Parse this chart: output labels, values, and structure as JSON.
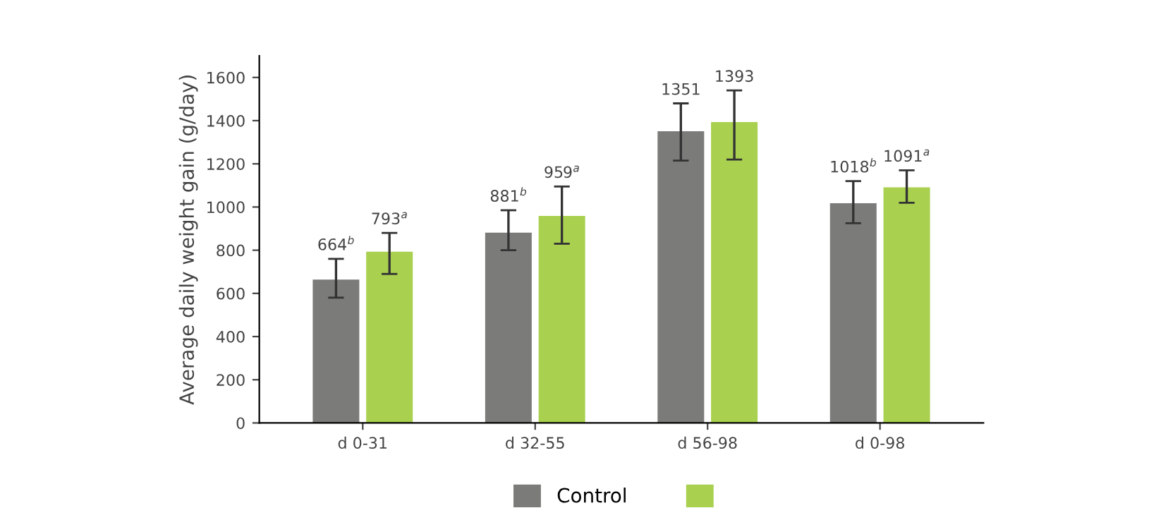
{
  "chart_data": {
    "type": "bar",
    "ylabel": "Average daily weight gain (g/day)",
    "categories": [
      "d 0-31",
      "d 32-55",
      "d 56-98",
      "d 0-98"
    ],
    "series": [
      {
        "name": "Control",
        "color": "#7b7b79",
        "values": [
          664,
          881,
          1351,
          1018
        ],
        "errors": [
          [
            580,
            760
          ],
          [
            800,
            985
          ],
          [
            1215,
            1480
          ],
          [
            925,
            1120
          ]
        ],
        "value_labels": [
          "664$^{b}$",
          "881$^{b}$",
          "1351",
          "1018$^{b}$"
        ]
      },
      {
        "color": "#a9d04f",
        "values": [
          793,
          959,
          1393,
          1091
        ],
        "errors": [
          [
            690,
            880
          ],
          [
            830,
            1095
          ],
          [
            1220,
            1540
          ],
          [
            1020,
            1170
          ]
        ],
        "value_labels": [
          "793$^{a}$",
          "959$^{a}$",
          "1393",
          "1091$^{a}$"
        ]
      }
    ],
    "ylim": [
      0,
      1700
    ],
    "yticks": [
      0,
      200,
      400,
      600,
      800,
      1000,
      1200,
      1400,
      1600
    ],
    "grid": false,
    "legend": "bottom"
  }
}
